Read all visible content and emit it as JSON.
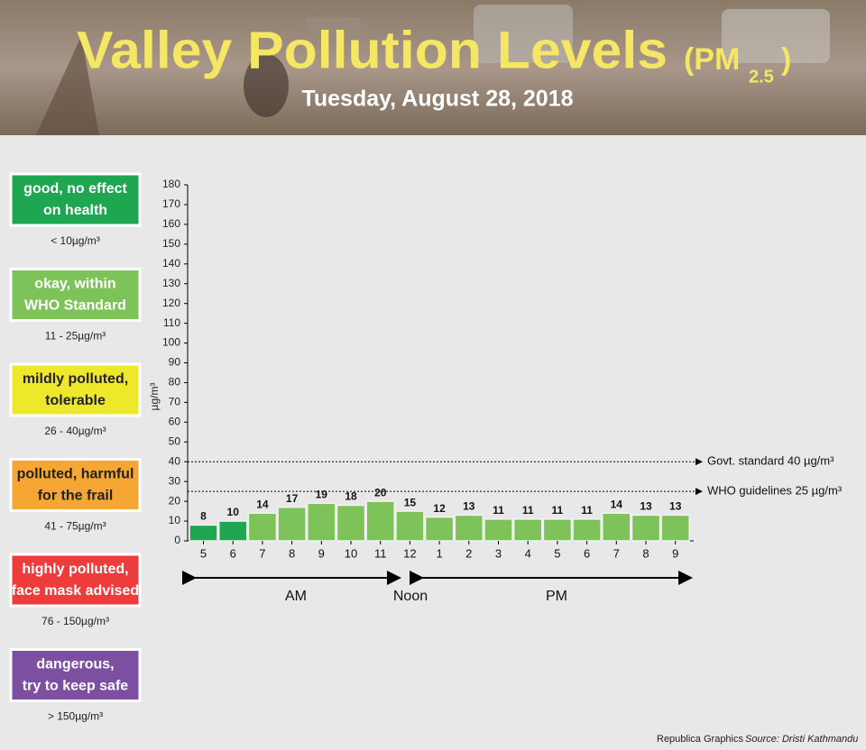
{
  "header": {
    "title": "Valley Pollution Levels",
    "pm_open": "(PM",
    "pm_sub": "2.5",
    "pm_close": ")",
    "date": "Tuesday, August 28, 2018"
  },
  "legend": [
    {
      "lines": [
        "good, no effect",
        "on health"
      ],
      "range": "< 10µg/m³",
      "color": "#1ea650",
      "text_color": "#ffffff"
    },
    {
      "lines": [
        "okay, within",
        "WHO Standard"
      ],
      "range": "11 - 25µg/m³",
      "color": "#7dc35a",
      "text_color": "#ffffff"
    },
    {
      "lines": [
        "mildly polluted,",
        "tolerable"
      ],
      "range": "26 - 40µg/m³",
      "color": "#ede82a",
      "text_color": "#222222"
    },
    {
      "lines": [
        "polluted, harmful",
        "for the frail"
      ],
      "range": "41 - 75µg/m³",
      "color": "#f5a633",
      "text_color": "#222222"
    },
    {
      "lines": [
        "highly polluted,",
        "face mask advised"
      ],
      "range": "76 - 150µg/m³",
      "color": "#ee3b3b",
      "text_color": "#ffffff"
    },
    {
      "lines": [
        "dangerous,",
        "try to keep safe"
      ],
      "range": "> 150µg/m³",
      "color": "#7d4fa0",
      "text_color": "#ffffff"
    }
  ],
  "chart_data": {
    "type": "bar",
    "y_label": "µg/m³",
    "categories": [
      "5",
      "6",
      "7",
      "8",
      "9",
      "10",
      "11",
      "12",
      "1",
      "2",
      "3",
      "4",
      "5",
      "6",
      "7",
      "8",
      "9"
    ],
    "values": [
      8,
      10,
      14,
      17,
      19,
      18,
      20,
      15,
      12,
      13,
      11,
      11,
      11,
      11,
      14,
      13,
      13
    ],
    "colors": [
      "#1ea650",
      "#1ea650",
      "#7dc35a",
      "#7dc35a",
      "#7dc35a",
      "#7dc35a",
      "#7dc35a",
      "#7dc35a",
      "#7dc35a",
      "#7dc35a",
      "#7dc35a",
      "#7dc35a",
      "#7dc35a",
      "#7dc35a",
      "#7dc35a",
      "#7dc35a",
      "#7dc35a"
    ],
    "ylim": [
      0,
      180
    ],
    "yticks": [
      0,
      10,
      20,
      30,
      40,
      50,
      60,
      70,
      80,
      90,
      100,
      110,
      120,
      130,
      140,
      150,
      160,
      170,
      180
    ],
    "grid": false,
    "reference_lines": [
      {
        "value": 40,
        "label": "Govt. standard 40 µg/m³"
      },
      {
        "value": 25,
        "label": "WHO guidelines 25 µg/m³"
      }
    ],
    "period_labels": [
      "AM",
      "Noon",
      "PM"
    ]
  },
  "credits": {
    "agency": "Republica Graphics",
    "source": "Source: Dristi Kathmandu"
  }
}
